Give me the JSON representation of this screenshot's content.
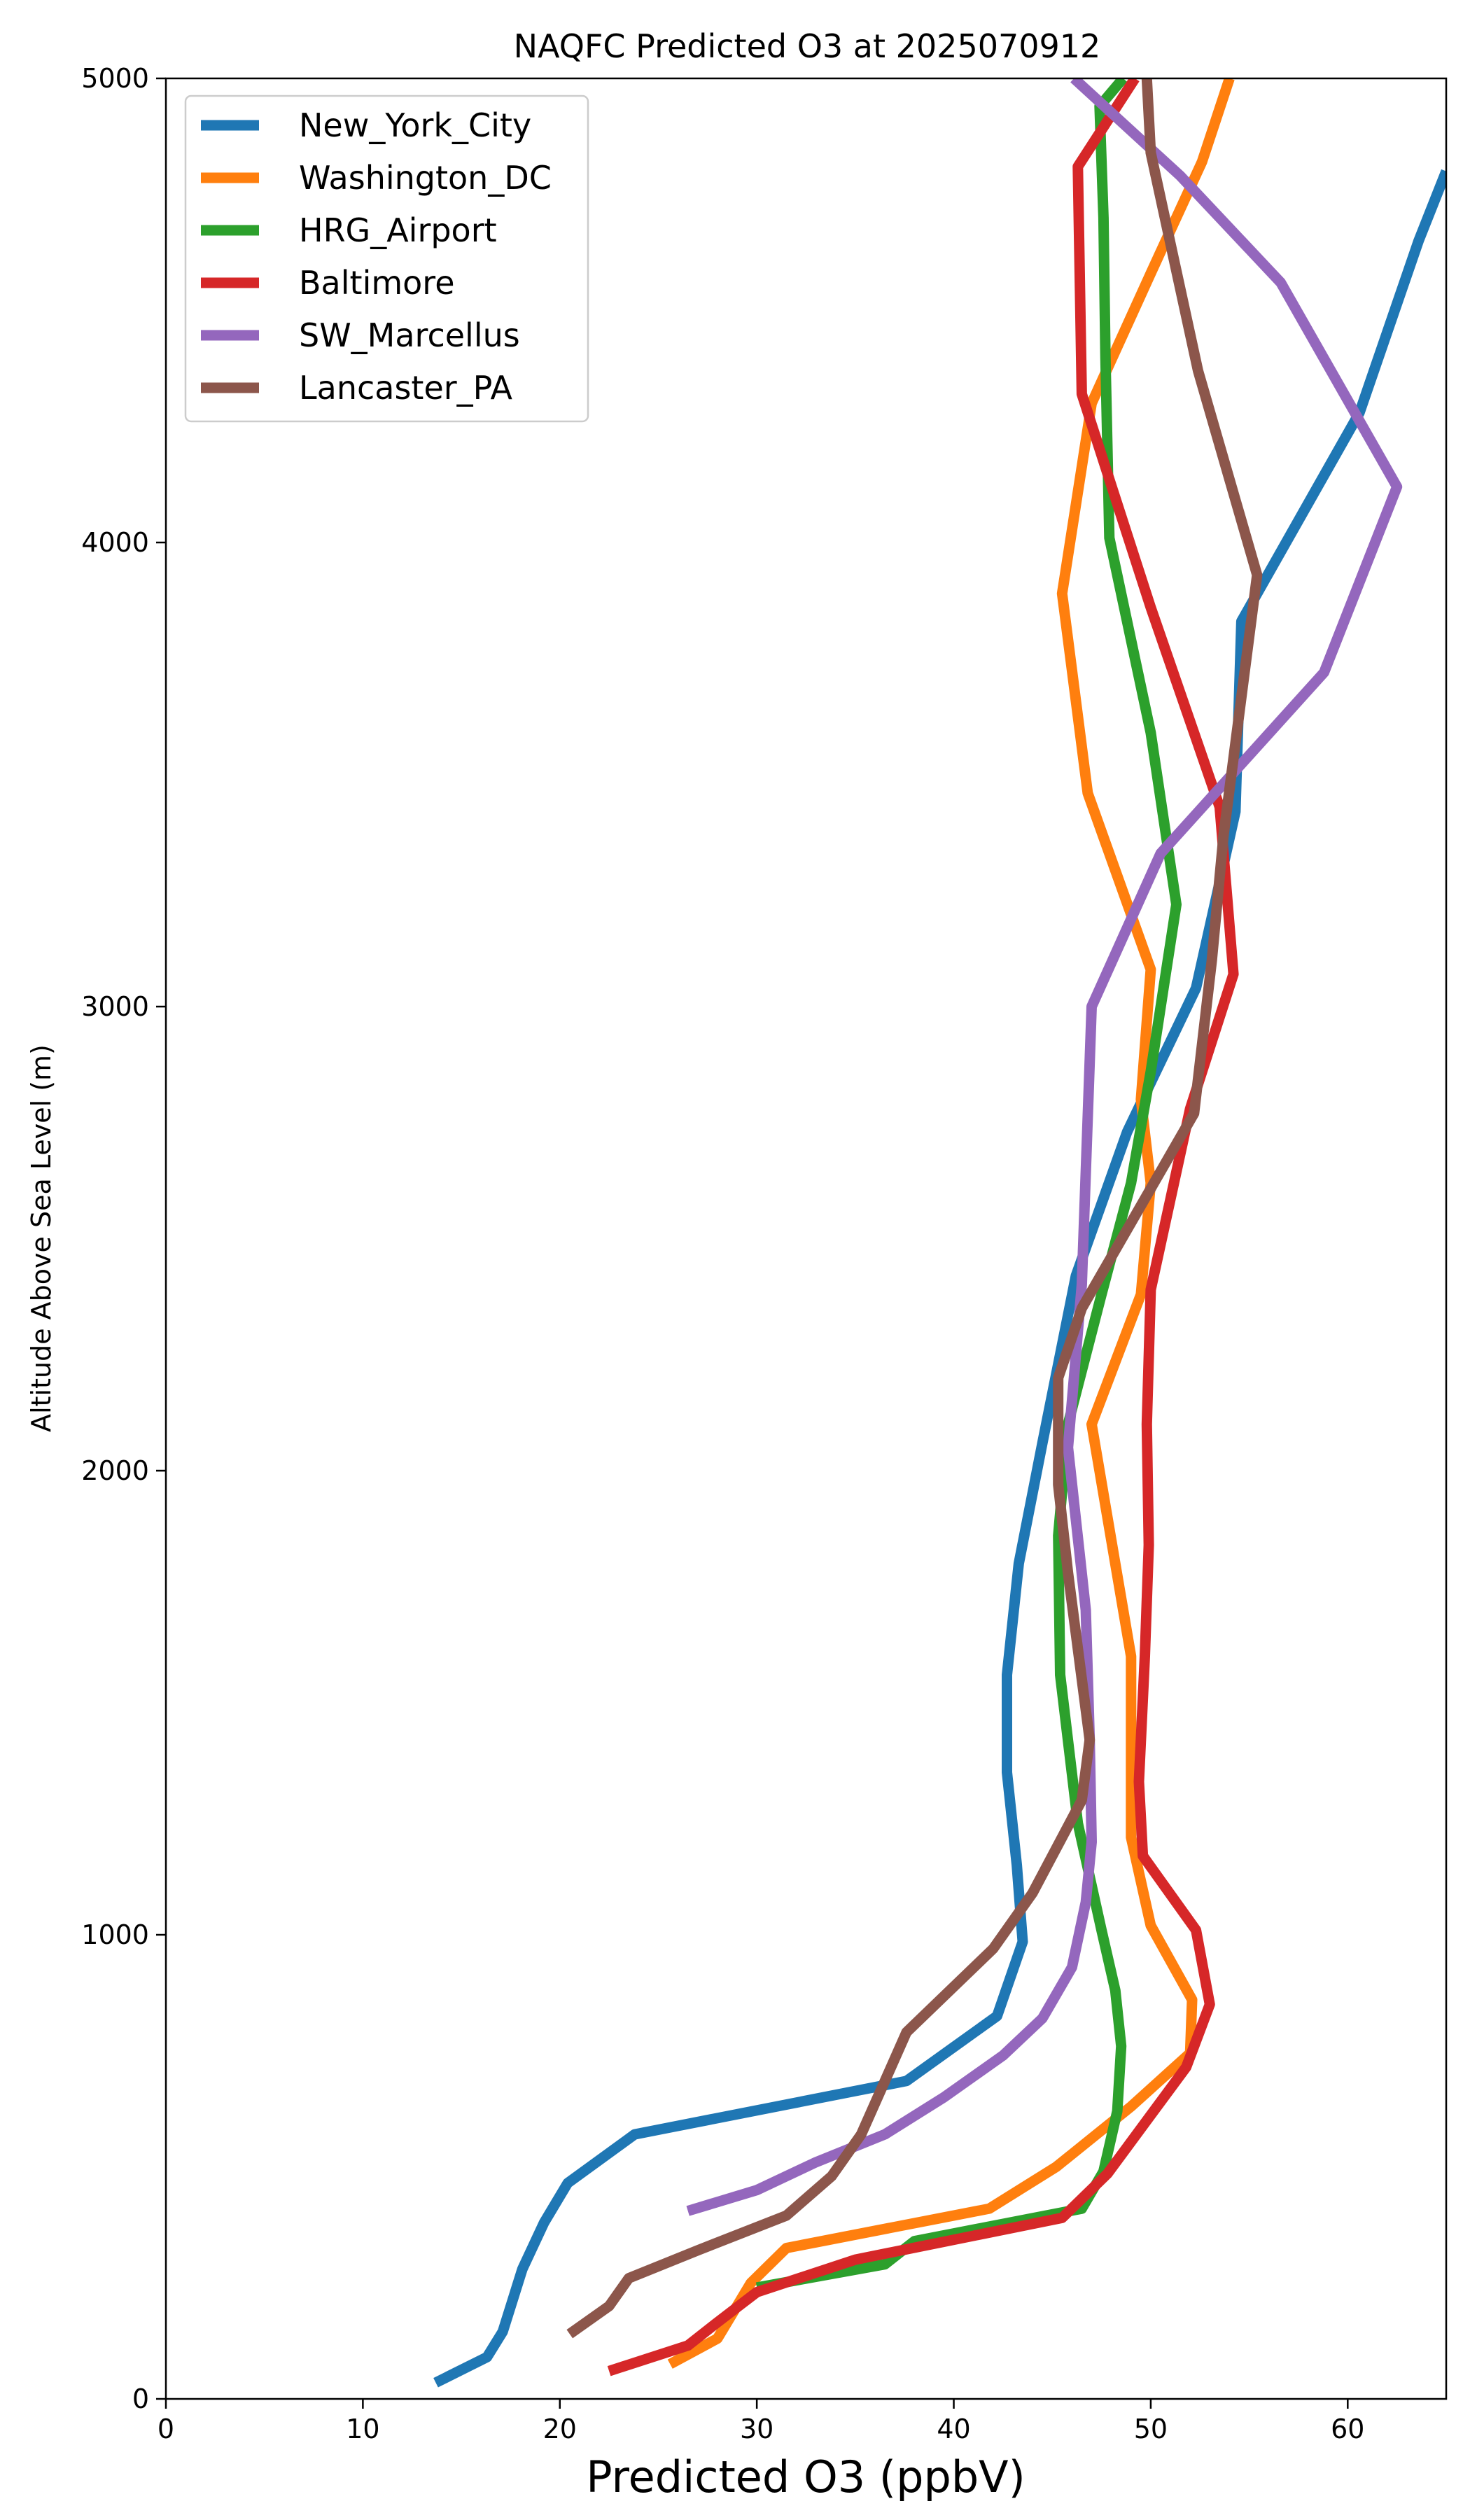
{
  "chart_data": {
    "type": "line",
    "title": "NAQFC Predicted O3 at 2025070912",
    "xlabel": "Predicted O3 (ppbV)",
    "ylabel": "Altitude Above Sea Level (m)",
    "xlim": [
      0,
      65
    ],
    "ylim": [
      0,
      5000
    ],
    "xticks": [
      0,
      10,
      20,
      30,
      40,
      50,
      60
    ],
    "yticks": [
      0,
      1000,
      2000,
      3000,
      4000,
      5000
    ],
    "grid": false,
    "legend_position": "top-left",
    "series": [
      {
        "name": "New_York_City",
        "color": "#1f77b4",
        "points": [
          [
            13.7,
            35
          ],
          [
            16.3,
            90
          ],
          [
            17.1,
            145
          ],
          [
            18.1,
            280
          ],
          [
            19.2,
            380
          ],
          [
            20.4,
            465
          ],
          [
            23.8,
            570
          ],
          [
            37.6,
            685
          ],
          [
            42.2,
            825
          ],
          [
            43.5,
            985
          ],
          [
            43.2,
            1150
          ],
          [
            42.7,
            1350
          ],
          [
            42.7,
            1560
          ],
          [
            43.3,
            1800
          ],
          [
            44.5,
            2060
          ],
          [
            46.2,
            2420
          ],
          [
            48.8,
            2730
          ],
          [
            52.3,
            3040
          ],
          [
            54.3,
            3420
          ],
          [
            54.6,
            3830
          ],
          [
            60.6,
            4280
          ],
          [
            63.6,
            4650
          ],
          [
            65.0,
            4800
          ]
        ]
      },
      {
        "name": "Washington_DC",
        "color": "#ff7f0e",
        "points": [
          [
            25.6,
            75
          ],
          [
            28.0,
            130
          ],
          [
            29.7,
            250
          ],
          [
            31.5,
            325
          ],
          [
            41.8,
            410
          ],
          [
            45.2,
            500
          ],
          [
            49.0,
            630
          ],
          [
            52.0,
            745
          ],
          [
            52.1,
            860
          ],
          [
            50.0,
            1020
          ],
          [
            49.0,
            1210
          ],
          [
            49.0,
            1440
          ],
          [
            49.0,
            1600
          ],
          [
            48.0,
            1850
          ],
          [
            47.0,
            2100
          ],
          [
            49.5,
            2380
          ],
          [
            50.0,
            2620
          ],
          [
            49.5,
            2800
          ],
          [
            50.0,
            3080
          ],
          [
            46.8,
            3460
          ],
          [
            45.5,
            3890
          ],
          [
            47.0,
            4300
          ],
          [
            50.0,
            4580
          ],
          [
            52.6,
            4820
          ],
          [
            54.0,
            5000
          ]
        ]
      },
      {
        "name": "HRG_Airport",
        "color": "#2ca02c",
        "points": [
          [
            30.0,
            240
          ],
          [
            36.5,
            290
          ],
          [
            38.0,
            340
          ],
          [
            46.5,
            410
          ],
          [
            47.6,
            490
          ],
          [
            48.3,
            620
          ],
          [
            48.5,
            760
          ],
          [
            48.2,
            880
          ],
          [
            47.5,
            1010
          ],
          [
            46.3,
            1240
          ],
          [
            45.4,
            1560
          ],
          [
            45.3,
            1860
          ],
          [
            45.8,
            2100
          ],
          [
            47.5,
            2380
          ],
          [
            49.0,
            2620
          ],
          [
            50.0,
            2860
          ],
          [
            51.3,
            3220
          ],
          [
            50.0,
            3590
          ],
          [
            47.9,
            4010
          ],
          [
            47.7,
            4400
          ],
          [
            47.6,
            4700
          ],
          [
            47.4,
            4940
          ],
          [
            48.6,
            5000
          ]
        ]
      },
      {
        "name": "Baltimore",
        "color": "#d62728",
        "points": [
          [
            22.5,
            60
          ],
          [
            26.5,
            115
          ],
          [
            28.0,
            165
          ],
          [
            30.0,
            230
          ],
          [
            35.0,
            300
          ],
          [
            45.5,
            390
          ],
          [
            47.8,
            485
          ],
          [
            51.8,
            715
          ],
          [
            53.0,
            850
          ],
          [
            52.3,
            1010
          ],
          [
            49.6,
            1170
          ],
          [
            49.4,
            1330
          ],
          [
            49.7,
            1600
          ],
          [
            49.9,
            1840
          ],
          [
            49.8,
            2100
          ],
          [
            50.0,
            2390
          ],
          [
            52.0,
            2780
          ],
          [
            54.2,
            3070
          ],
          [
            53.5,
            3430
          ],
          [
            50.0,
            3860
          ],
          [
            46.5,
            4320
          ],
          [
            46.3,
            4810
          ],
          [
            49.2,
            5000
          ]
        ]
      },
      {
        "name": "SW_Marcellus",
        "color": "#9467bd",
        "points": [
          [
            26.5,
            405
          ],
          [
            30.0,
            450
          ],
          [
            33.0,
            510
          ],
          [
            36.5,
            570
          ],
          [
            39.5,
            650
          ],
          [
            42.5,
            740
          ],
          [
            44.5,
            820
          ],
          [
            46.0,
            930
          ],
          [
            46.7,
            1070
          ],
          [
            47.0,
            1200
          ],
          [
            46.9,
            1420
          ],
          [
            46.7,
            1700
          ],
          [
            45.8,
            2050
          ],
          [
            46.1,
            2200
          ],
          [
            46.5,
            2400
          ],
          [
            47.0,
            3000
          ],
          [
            50.5,
            3330
          ],
          [
            58.8,
            3720
          ],
          [
            62.5,
            4120
          ],
          [
            56.6,
            4560
          ],
          [
            51.5,
            4790
          ],
          [
            46.1,
            5000
          ]
        ]
      },
      {
        "name": "Lancaster_PA",
        "color": "#8c564b",
        "points": [
          [
            20.5,
            140
          ],
          [
            22.5,
            200
          ],
          [
            23.5,
            260
          ],
          [
            27.0,
            320
          ],
          [
            31.5,
            395
          ],
          [
            33.8,
            480
          ],
          [
            35.3,
            570
          ],
          [
            37.6,
            790
          ],
          [
            42.0,
            970
          ],
          [
            44.0,
            1090
          ],
          [
            46.5,
            1290
          ],
          [
            46.9,
            1420
          ],
          [
            45.8,
            1780
          ],
          [
            45.3,
            1970
          ],
          [
            45.3,
            2200
          ],
          [
            46.5,
            2350
          ],
          [
            52.2,
            2770
          ],
          [
            53.1,
            3100
          ],
          [
            53.7,
            3370
          ],
          [
            55.4,
            3930
          ],
          [
            52.4,
            4370
          ],
          [
            50.0,
            4840
          ],
          [
            49.8,
            5000
          ]
        ]
      }
    ]
  }
}
